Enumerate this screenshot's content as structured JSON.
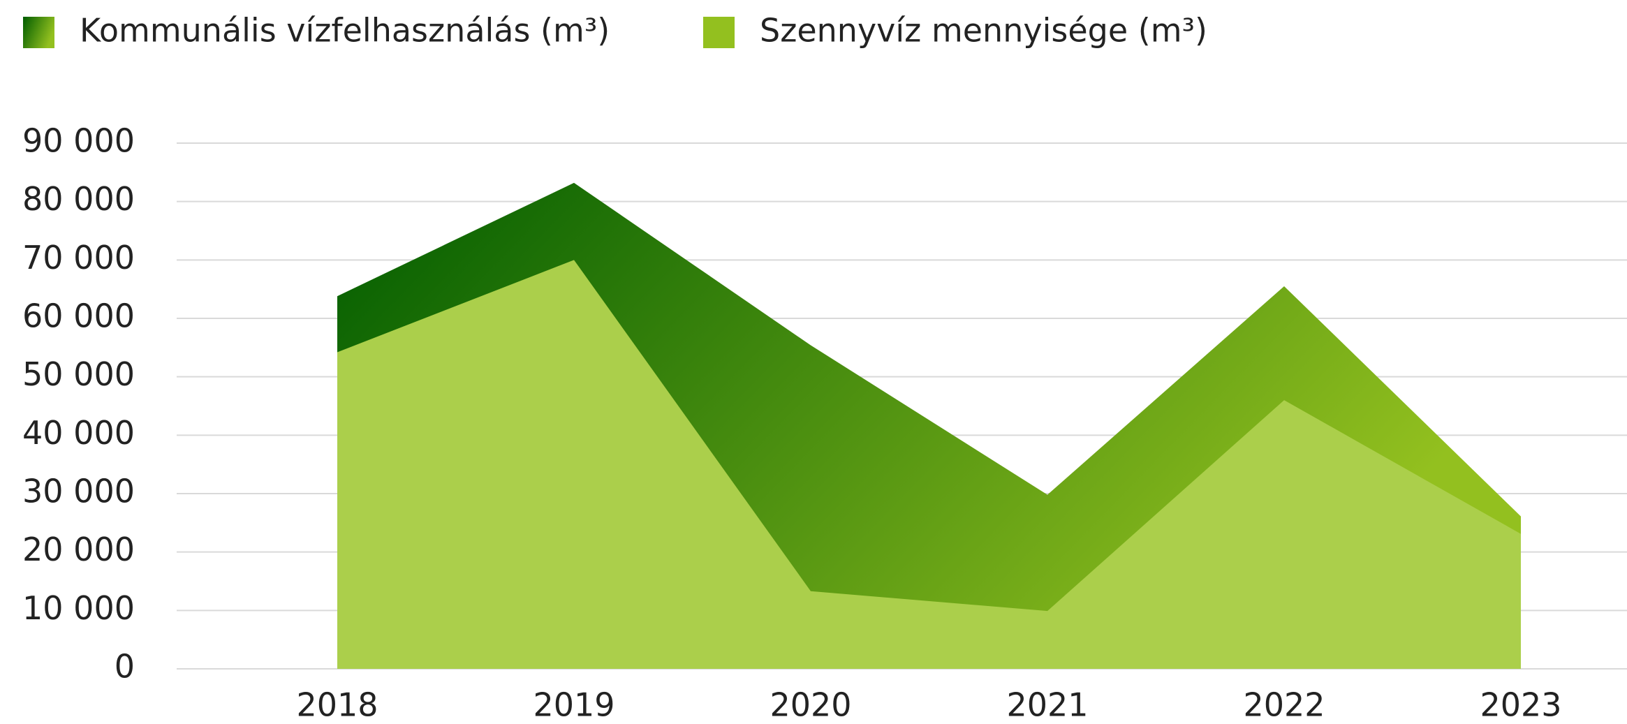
{
  "chart_data": {
    "type": "area",
    "categories": [
      "2018",
      "2019",
      "2020",
      "2021",
      "2022",
      "2023"
    ],
    "series": [
      {
        "name": "Kommunális vízfelhasználás (m³)",
        "color": "#0b6b06",
        "values": [
          63800,
          83200,
          55400,
          29800,
          65500,
          26100
        ]
      },
      {
        "name": "Szennyvíz mennyisége (m³)",
        "color": "#abcf4b",
        "values": [
          54200,
          70000,
          13300,
          9900,
          46000,
          23100
        ]
      }
    ],
    "ylim": [
      0,
      90000
    ],
    "yticks": [
      0,
      {
        "value": 10000,
        "label": "10 000"
      },
      {
        "value": 20000,
        "label": "20 000"
      },
      {
        "value": 30000,
        "label": "30 000"
      },
      {
        "value": 40000,
        "label": "40 000"
      },
      {
        "value": 50000,
        "label": "50 000"
      },
      {
        "value": 60000,
        "label": "60 000"
      },
      {
        "value": 70000,
        "label": "70 000"
      },
      {
        "value": 80000,
        "label": "80 000"
      },
      {
        "value": 90000,
        "label": "90 000"
      }
    ],
    "grid": true,
    "legend": "top"
  }
}
